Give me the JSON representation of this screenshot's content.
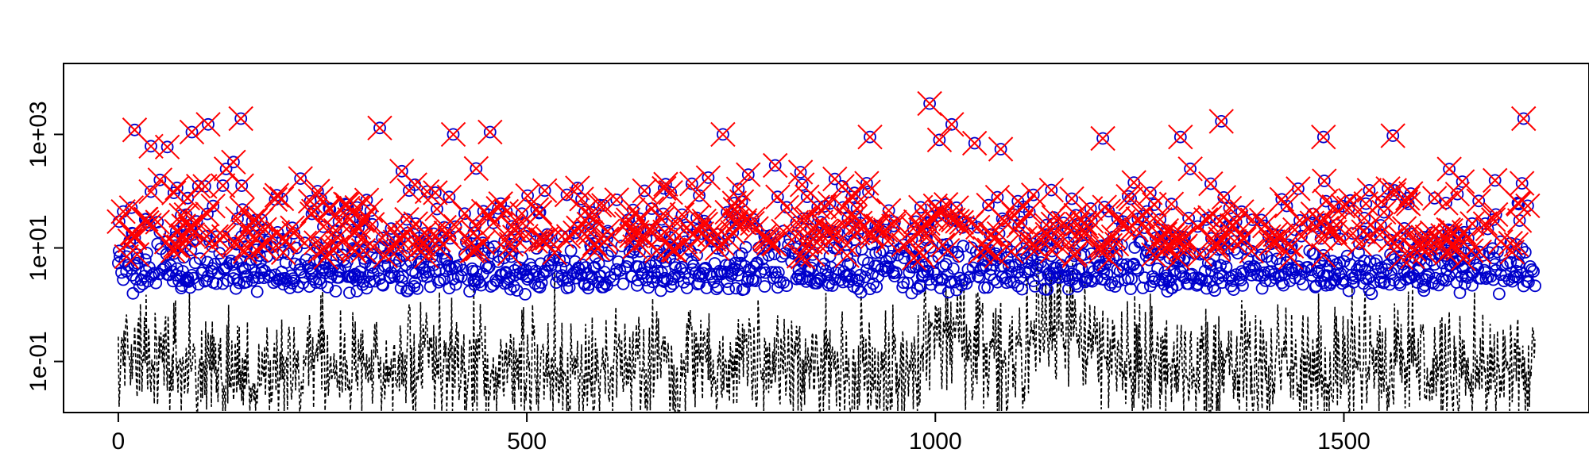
{
  "chart_data": {
    "type": "scatter",
    "title": "",
    "xlabel": "",
    "ylabel": "",
    "x_range": [
      -67,
      1800
    ],
    "y_log_range": [
      -1.9,
      4.25
    ],
    "x_ticks": [
      {
        "value": 0,
        "label": "0"
      },
      {
        "value": 500,
        "label": "500"
      },
      {
        "value": 1000,
        "label": "1000"
      },
      {
        "value": 1500,
        "label": "1500"
      }
    ],
    "y_ticks": [
      {
        "value": 0.1,
        "label": "1e-01"
      },
      {
        "value": 10,
        "label": "1e+01"
      },
      {
        "value": 1000,
        "label": "1e+03"
      }
    ],
    "grid": false,
    "n_points": 1735,
    "series": [
      {
        "role": "line",
        "style": "dashed",
        "color": "#000000",
        "description": "dense dashed series, mostly between 1e-02 and 1e+00"
      },
      {
        "role": "circles",
        "marker": "open-circle",
        "color": "#0000cc"
      },
      {
        "role": "crosses",
        "marker": "x",
        "color": "#ff0000"
      }
    ],
    "highlights": [
      {
        "x": 993,
        "y": 3500
      },
      {
        "x": 1020,
        "y": 1500
      },
      {
        "x": 1048,
        "y": 700
      },
      {
        "x": 1080,
        "y": 550
      },
      {
        "x": 1350,
        "y": 1700
      },
      {
        "x": 1720,
        "y": 1900
      },
      {
        "x": 150,
        "y": 1900
      },
      {
        "x": 20,
        "y": 1200
      },
      {
        "x": 320,
        "y": 1300
      },
      {
        "x": 90,
        "y": 1100
      },
      {
        "x": 110,
        "y": 1500
      },
      {
        "x": 410,
        "y": 1000
      },
      {
        "x": 455,
        "y": 1100
      },
      {
        "x": 740,
        "y": 1000
      },
      {
        "x": 1300,
        "y": 900
      },
      {
        "x": 1560,
        "y": 950
      },
      {
        "x": 1475,
        "y": 900
      },
      {
        "x": 1205,
        "y": 850
      },
      {
        "x": 920,
        "y": 900
      },
      {
        "x": 1005,
        "y": 800
      },
      {
        "x": 40,
        "y": 620
      },
      {
        "x": 60,
        "y": 600
      }
    ]
  }
}
